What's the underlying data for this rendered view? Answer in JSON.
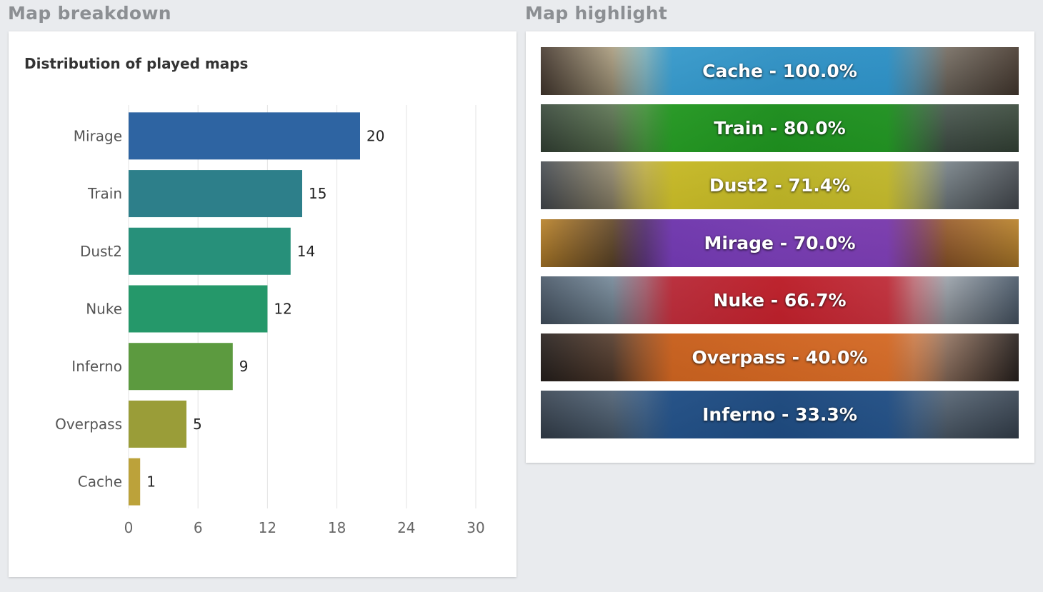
{
  "sections": {
    "left_title": "Map breakdown",
    "right_title": "Map highlight"
  },
  "chart_data": {
    "type": "bar",
    "orientation": "horizontal",
    "title": "Distribution of played maps",
    "categories": [
      "Mirage",
      "Train",
      "Dust2",
      "Nuke",
      "Inferno",
      "Overpass",
      "Cache"
    ],
    "values": [
      20,
      15,
      14,
      12,
      9,
      5,
      1
    ],
    "colors": [
      "#2e64a2",
      "#2d7f8a",
      "#27907a",
      "#25986a",
      "#5c9a3f",
      "#9a9d38",
      "#bca23a"
    ],
    "xlim": [
      0,
      30
    ],
    "xticks": [
      "0",
      "6",
      "12",
      "18",
      "24",
      "30"
    ],
    "grid": true
  },
  "highlights": [
    {
      "map": "Cache",
      "pct": "100.0%",
      "tint": "#1f95d6",
      "scene": [
        "#4a3d33",
        "#d9cba4",
        "#9c8b70",
        "#8a8378"
      ]
    },
    {
      "map": "Train",
      "pct": "80.0%",
      "tint": "#1c9f1c",
      "scene": [
        "#3a4a3c",
        "#6e8a5e",
        "#2e3b33",
        "#4d5b55"
      ]
    },
    {
      "map": "Dust2",
      "pct": "71.4%",
      "tint": "#cdbf1a",
      "scene": [
        "#4a4f55",
        "#b8a77c",
        "#6b7a70",
        "#8d9aa0"
      ]
    },
    {
      "map": "Mirage",
      "pct": "70.0%",
      "tint": "#7a3bc8",
      "scene": [
        "#b9822a",
        "#3c2f2a",
        "#6b4a3a",
        "#8a4c2c"
      ]
    },
    {
      "map": "Nuke",
      "pct": "66.7%",
      "tint": "#c21c2a",
      "scene": [
        "#4b5a6a",
        "#8aa0b0",
        "#a33b33",
        "#c0c4c8"
      ]
    },
    {
      "map": "Overpass",
      "pct": "40.0%",
      "tint": "#d9661c",
      "scene": [
        "#2a2320",
        "#6b4a35",
        "#a36a4a",
        "#c49a80"
      ]
    },
    {
      "map": "Inferno",
      "pct": "33.3%",
      "tint": "#1c4e8a",
      "scene": [
        "#3a4654",
        "#5a6f84",
        "#2c3845",
        "#607080"
      ]
    }
  ],
  "separator": " - "
}
